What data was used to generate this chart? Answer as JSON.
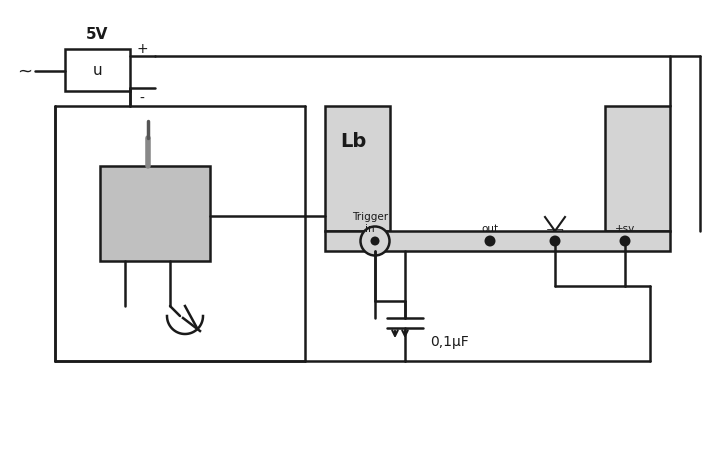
{
  "bg_color": "#ffffff",
  "line_color": "#1a1a1a",
  "gray_fill": "#c0c0c0",
  "lb_fill": "#d4d4d4",
  "lw": 1.8,
  "fig_width": 7.23,
  "fig_height": 4.77,
  "labels": {
    "voltage": "5V",
    "plus": "+",
    "minus": "-",
    "tilde": "~",
    "u": "u",
    "lb": "Lb",
    "trigger_in": "Trigger\nin",
    "out": "out",
    "plus_sv": "+sv",
    "capacitor": "0,1μF"
  }
}
